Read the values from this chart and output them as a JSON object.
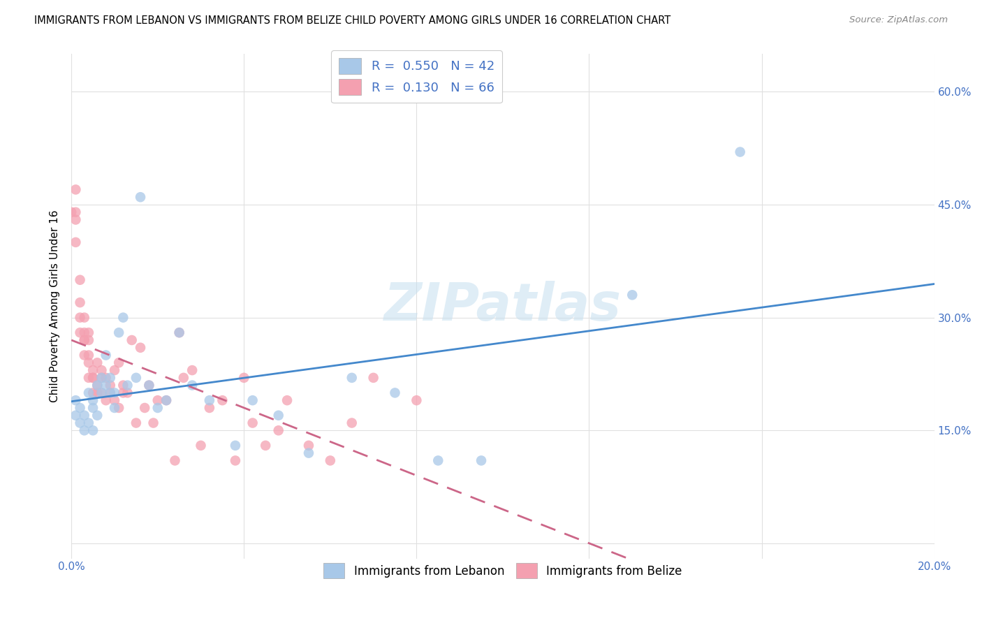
{
  "title": "IMMIGRANTS FROM LEBANON VS IMMIGRANTS FROM BELIZE CHILD POVERTY AMONG GIRLS UNDER 16 CORRELATION CHART",
  "source": "Source: ZipAtlas.com",
  "ylabel": "Child Poverty Among Girls Under 16",
  "xlim": [
    0.0,
    0.2
  ],
  "ylim": [
    -0.02,
    0.65
  ],
  "xticks": [
    0.0,
    0.04,
    0.08,
    0.12,
    0.16,
    0.2
  ],
  "xticklabels": [
    "0.0%",
    "",
    "",
    "",
    "",
    "20.0%"
  ],
  "yticks_left": [
    0.0,
    0.15,
    0.3,
    0.45,
    0.6
  ],
  "ytick_right_labels": [
    "15.0%",
    "30.0%",
    "45.0%",
    "60.0%"
  ],
  "yticks_right": [
    0.15,
    0.3,
    0.45,
    0.6
  ],
  "background_color": "#ffffff",
  "grid_color": "#e0e0e0",
  "watermark": "ZIPatlas",
  "legend_R1": "0.550",
  "legend_N1": "42",
  "legend_R2": "0.130",
  "legend_N2": "66",
  "color_lebanon": "#a8c8e8",
  "color_belize": "#f4a0b0",
  "color_lebanon_line": "#4488cc",
  "color_belize_line": "#cc6688",
  "lebanon_label": "Immigrants from Lebanon",
  "belize_label": "Immigrants from Belize",
  "lebanon_x": [
    0.001,
    0.001,
    0.002,
    0.002,
    0.003,
    0.003,
    0.004,
    0.004,
    0.005,
    0.005,
    0.005,
    0.006,
    0.006,
    0.007,
    0.007,
    0.008,
    0.008,
    0.009,
    0.009,
    0.01,
    0.01,
    0.011,
    0.012,
    0.013,
    0.015,
    0.016,
    0.018,
    0.02,
    0.022,
    0.025,
    0.028,
    0.032,
    0.038,
    0.042,
    0.048,
    0.055,
    0.065,
    0.075,
    0.085,
    0.095,
    0.13,
    0.155
  ],
  "lebanon_y": [
    0.17,
    0.19,
    0.16,
    0.18,
    0.15,
    0.17,
    0.16,
    0.2,
    0.15,
    0.18,
    0.19,
    0.21,
    0.17,
    0.2,
    0.22,
    0.21,
    0.25,
    0.2,
    0.22,
    0.2,
    0.18,
    0.28,
    0.3,
    0.21,
    0.22,
    0.46,
    0.21,
    0.18,
    0.19,
    0.28,
    0.21,
    0.19,
    0.13,
    0.19,
    0.17,
    0.12,
    0.22,
    0.2,
    0.11,
    0.11,
    0.33,
    0.52
  ],
  "belize_x": [
    0.0,
    0.001,
    0.001,
    0.001,
    0.001,
    0.002,
    0.002,
    0.002,
    0.002,
    0.003,
    0.003,
    0.003,
    0.003,
    0.003,
    0.004,
    0.004,
    0.004,
    0.004,
    0.004,
    0.005,
    0.005,
    0.005,
    0.005,
    0.006,
    0.006,
    0.006,
    0.007,
    0.007,
    0.007,
    0.008,
    0.008,
    0.009,
    0.009,
    0.01,
    0.01,
    0.011,
    0.011,
    0.012,
    0.012,
    0.013,
    0.014,
    0.015,
    0.016,
    0.017,
    0.018,
    0.019,
    0.02,
    0.022,
    0.024,
    0.025,
    0.026,
    0.028,
    0.03,
    0.032,
    0.035,
    0.038,
    0.04,
    0.042,
    0.045,
    0.048,
    0.05,
    0.055,
    0.06,
    0.065,
    0.07,
    0.08
  ],
  "belize_y": [
    0.44,
    0.43,
    0.44,
    0.47,
    0.4,
    0.35,
    0.32,
    0.3,
    0.28,
    0.3,
    0.27,
    0.28,
    0.25,
    0.27,
    0.25,
    0.24,
    0.22,
    0.27,
    0.28,
    0.22,
    0.23,
    0.2,
    0.22,
    0.2,
    0.21,
    0.24,
    0.23,
    0.22,
    0.2,
    0.22,
    0.19,
    0.21,
    0.2,
    0.19,
    0.23,
    0.18,
    0.24,
    0.2,
    0.21,
    0.2,
    0.27,
    0.16,
    0.26,
    0.18,
    0.21,
    0.16,
    0.19,
    0.19,
    0.11,
    0.28,
    0.22,
    0.23,
    0.13,
    0.18,
    0.19,
    0.11,
    0.22,
    0.16,
    0.13,
    0.15,
    0.19,
    0.13,
    0.11,
    0.16,
    0.22,
    0.19
  ]
}
